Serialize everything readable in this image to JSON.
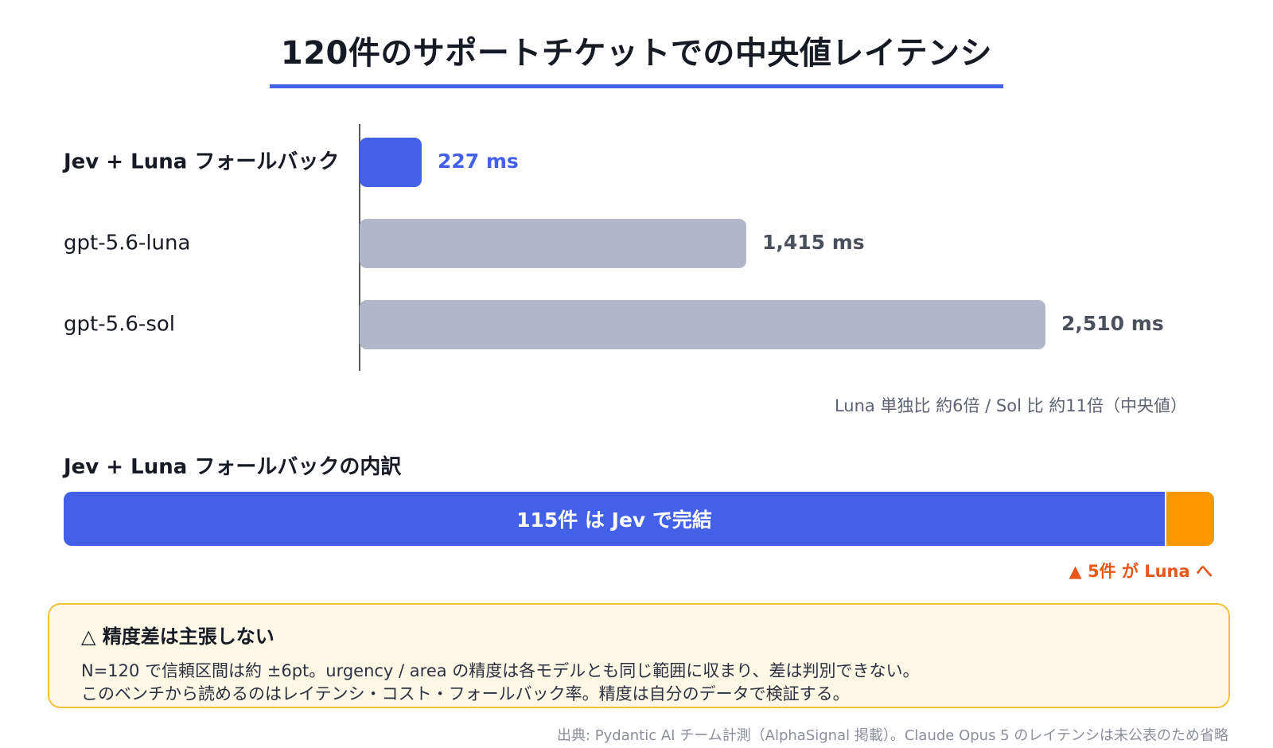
{
  "title": "120件のサポートチケットでの中央値レイテンシ",
  "chart_data": {
    "type": "bar",
    "orientation": "horizontal",
    "title": "120件のサポートチケットでの中央値レイテンシ",
    "unit": "ms",
    "categories": [
      "Jev + Luna フォールバック",
      "gpt-5.6-luna",
      "gpt-5.6-sol"
    ],
    "values": [
      227,
      1415,
      2510
    ],
    "value_labels": [
      "227 ms",
      "1,415 ms",
      "2,510 ms"
    ],
    "highlight_index": 0,
    "colors": {
      "highlight": "#4361e8",
      "default": "#b1b7c9",
      "axis": "#555a66"
    },
    "grid": false,
    "legend": "none"
  },
  "ratio_note": "Luna 単独比 約6倍 / Sol 比 約11倍（中央値）",
  "breakdown": {
    "title": "Jev + Luna フォールバックの内訳",
    "jev_count": 115,
    "luna_count": 5,
    "total": 120,
    "jev_label": "115件 は Jev で完結",
    "luna_label": "▲ 5件 が Luna へ",
    "colors": {
      "jev": "#4361e8",
      "luna": "#ff9800",
      "luna_text": "#e8561a"
    }
  },
  "callout": {
    "title": "△ 精度差は主張しない",
    "line1": "N=120 で信頼区間は約 ±6pt。urgency / area の精度は各モデルとも同じ範囲に収まり、差は判別できない。",
    "line2": "このベンチから読めるのはレイテンシ・コスト・フォールバック率。精度は自分のデータで検証する。"
  },
  "source": "出典: Pydantic AI チーム計測（AlphaSignal 掲載）。Claude Opus 5 のレイテンシは未公表のため省略"
}
